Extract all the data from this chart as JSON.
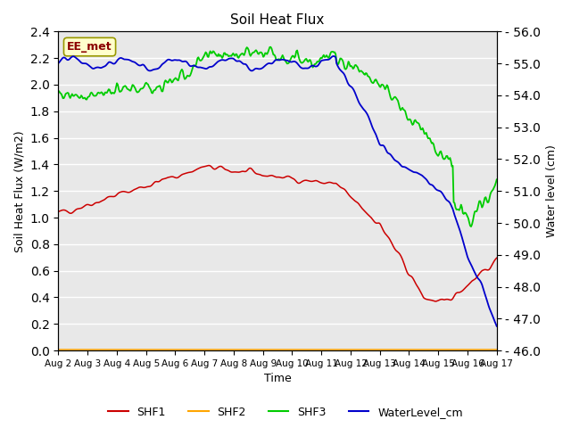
{
  "title": "Soil Heat Flux",
  "ylabel_left": "Soil Heat Flux (W/m2)",
  "ylabel_right": "Water level (cm)",
  "xlabel": "Time",
  "annotation": "EE_met",
  "bg_color": "#e8e8e8",
  "fig_bg_color": "#ffffff",
  "ylim_left": [
    0.0,
    2.4
  ],
  "ylim_right": [
    46.0,
    56.0
  ],
  "yticks_left": [
    0.0,
    0.2,
    0.4,
    0.6,
    0.8,
    1.0,
    1.2,
    1.4,
    1.6,
    1.8,
    2.0,
    2.2,
    2.4
  ],
  "yticks_right_vals": [
    46.0,
    47.0,
    48.0,
    49.0,
    50.0,
    51.0,
    52.0,
    53.0,
    54.0,
    55.0,
    56.0
  ],
  "yticks_right_labels": [
    "- 46.0",
    "- 47.0",
    "- 48.0",
    "- 49.0",
    "- 50.0",
    "- 51.0",
    "- 52.0",
    "- 53.0",
    "- 54.0",
    "- 55.0",
    "- 56.0"
  ],
  "colors": {
    "SHF1": "#cc0000",
    "SHF2": "#ffa500",
    "SHF3": "#00cc00",
    "WaterLevel_cm": "#0000cc"
  },
  "legend_labels": [
    "SHF1",
    "SHF2",
    "SHF3",
    "WaterLevel_cm"
  ],
  "x_tick_labels": [
    "Aug 2",
    "Aug 3",
    "Aug 4",
    "Aug 5",
    "Aug 6",
    "Aug 7",
    "Aug 8",
    "Aug 9",
    "Aug 10",
    "Aug 11",
    "Aug 12",
    "Aug 13",
    "Aug 14",
    "Aug 15",
    "Aug 16",
    "Aug 17"
  ],
  "num_points": 480
}
